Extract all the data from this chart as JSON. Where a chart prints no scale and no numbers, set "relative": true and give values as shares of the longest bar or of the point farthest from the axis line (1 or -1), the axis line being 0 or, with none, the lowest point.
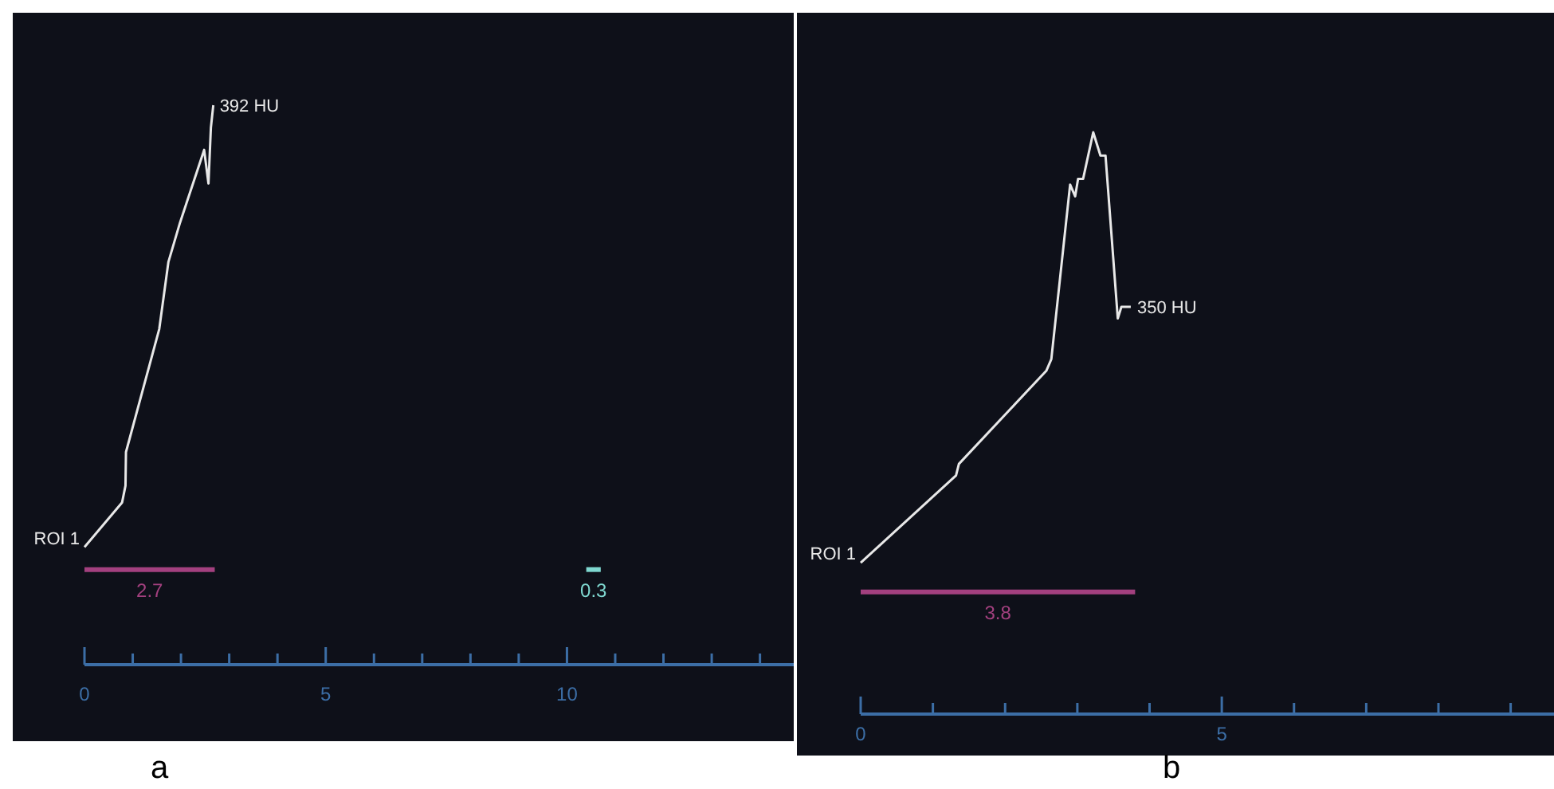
{
  "chart_data": [
    {
      "type": "line",
      "relative": true,
      "xlim": [
        0,
        14.7
      ],
      "xticks": [
        0,
        {
          "value": 1,
          "label": null
        },
        {
          "value": 2,
          "label": null
        },
        {
          "value": 3,
          "label": null
        },
        {
          "value": 4,
          "label": null
        },
        5,
        {
          "value": 6,
          "label": null
        },
        {
          "value": 7,
          "label": null
        },
        {
          "value": 8,
          "label": null
        },
        {
          "value": 9,
          "label": null
        },
        10,
        {
          "value": 11,
          "label": null
        },
        {
          "value": 12,
          "label": null
        },
        {
          "value": 13,
          "label": null
        },
        {
          "value": 14,
          "label": null
        }
      ],
      "series": [
        {
          "color": "#e8e8e8",
          "x": [
            0,
            0.78,
            0.85,
            0.86,
            1.55,
            1.74,
            1.98,
            2.48,
            2.57,
            2.62,
            2.67
          ],
          "values": [
            0.21,
            0.29,
            0.32,
            0.38,
            0.6,
            0.72,
            0.79,
            0.92,
            0.86,
            0.96,
            1
          ]
        },
        {
          "name": "2.7",
          "color": "#a3407f",
          "x": [
            0,
            2.7
          ],
          "values": [
            0.17,
            0.17
          ]
        },
        {
          "name": "0.3",
          "color": "#7fd8d0",
          "x": [
            10.4,
            10.7
          ],
          "values": [
            0.17,
            0.17
          ]
        }
      ],
      "annotations": [
        {
          "text": "ROI 1",
          "x": 0,
          "y": 0.21
        },
        {
          "text": "392 HU",
          "x": 2.67,
          "y": 1
        },
        "a"
      ]
    },
    {
      "type": "line",
      "relative": true,
      "xlim": [
        0,
        9.6
      ],
      "xticks": [
        0,
        {
          "value": 1,
          "label": null
        },
        {
          "value": 2,
          "label": null
        },
        {
          "value": 3,
          "label": null
        },
        {
          "value": 4,
          "label": null
        },
        5,
        {
          "value": 6,
          "label": null
        },
        {
          "value": 7,
          "label": null
        },
        {
          "value": 8,
          "label": null
        },
        {
          "value": 9,
          "label": null
        }
      ],
      "series": [
        {
          "color": "#e8e8e8",
          "x": [
            0,
            1.32,
            1.36,
            2.57,
            2.64,
            2.9,
            2.97,
            3.01,
            3.08,
            3.22,
            3.32,
            3.39,
            3.56,
            3.61,
            3.74
          ],
          "values": [
            0.26,
            0.41,
            0.43,
            0.59,
            0.61,
            0.91,
            0.89,
            0.92,
            0.92,
            1,
            0.96,
            0.96,
            0.68,
            0.7,
            0.7
          ]
        },
        {
          "name": "3.8",
          "color": "#a3407f",
          "x": [
            0,
            3.8
          ],
          "values": [
            0.21,
            0.21
          ]
        }
      ],
      "annotations": [
        {
          "text": "ROI 1",
          "x": 0,
          "y": 0.26
        },
        {
          "text": "350 HU",
          "x": 3.74,
          "y": 0.7
        },
        "b"
      ]
    }
  ]
}
